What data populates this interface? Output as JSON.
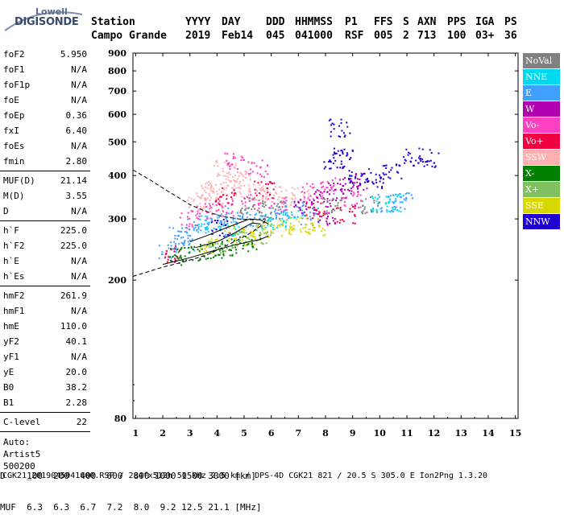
{
  "logo": {
    "line1": "Lowell",
    "line2": "DIGISONDE"
  },
  "header": {
    "labels": [
      "Station",
      "YYYY",
      "DAY",
      "DDD",
      "HHMMSS",
      "P1",
      "FFS",
      "S",
      "AXN",
      "PPS",
      "IGA",
      "PS"
    ],
    "station": "Campo Grande",
    "year": "2019",
    "day": "Feb14",
    "ddd": "045",
    "hhmmss": "041000",
    "p1": "RSF",
    "ffs": "005",
    "s": "2",
    "axn": "713",
    "pps": "100",
    "iga": "03+",
    "ps": "36"
  },
  "params": {
    "group1": [
      {
        "label": "foF2",
        "value": "5.950"
      },
      {
        "label": "foF1",
        "value": "N/A"
      },
      {
        "label": "foF1p",
        "value": "N/A"
      },
      {
        "label": "foE",
        "value": "N/A"
      },
      {
        "label": "foEp",
        "value": "0.36"
      },
      {
        "label": "fxI",
        "value": "6.40"
      },
      {
        "label": "foEs",
        "value": "N/A"
      },
      {
        "label": "fmin",
        "value": "2.80"
      }
    ],
    "group2": [
      {
        "label": "MUF(D)",
        "value": "21.14"
      },
      {
        "label": "M(D)",
        "value": "3.55"
      },
      {
        "label": "D",
        "value": "N/A"
      }
    ],
    "group3": [
      {
        "label": "h`F",
        "value": "225.0"
      },
      {
        "label": "h`F2",
        "value": "225.0"
      },
      {
        "label": "h`E",
        "value": "N/A"
      },
      {
        "label": "h`Es",
        "value": "N/A"
      }
    ],
    "group4": [
      {
        "label": "hmF2",
        "value": "261.9"
      },
      {
        "label": "hmF1",
        "value": "N/A"
      },
      {
        "label": "hmE",
        "value": "110.0"
      },
      {
        "label": "yF2",
        "value": "40.1"
      },
      {
        "label": "yF1",
        "value": "N/A"
      },
      {
        "label": "yE",
        "value": "20.0"
      },
      {
        "label": "B0",
        "value": "38.2"
      },
      {
        "label": "B1",
        "value": "2.28"
      }
    ],
    "group5": [
      {
        "label": "C-level",
        "value": "22"
      }
    ],
    "auto": [
      "Auto:",
      "Artist5",
      "500200"
    ]
  },
  "legend": [
    {
      "label": "NoVal",
      "color": "#808080"
    },
    {
      "label": "NNE",
      "color": "#00d8f0"
    },
    {
      "label": "E",
      "color": "#40a0ff"
    },
    {
      "label": "W",
      "color": "#b000b0"
    },
    {
      "label": "Vo-",
      "color": "#ff40c0"
    },
    {
      "label": "Vo+",
      "color": "#f00040"
    },
    {
      "label": "SSW",
      "color": "#ffb0b0"
    },
    {
      "label": "X-",
      "color": "#008000"
    },
    {
      "label": "X+",
      "color": "#80c060"
    },
    {
      "label": "SSE",
      "color": "#d8d800"
    },
    {
      "label": "NNW",
      "color": "#2000d0"
    }
  ],
  "bottom": {
    "d_row": "D    100  200  400  600  800 1000 1500 3000 [km]",
    "muf_row": "MUF  6.3  6.3  6.7  7.2  8.0  9.2 12.5 21.1 [MHz]",
    "footer": "CGK21_2019045041000.RSF / 284fx512h 50 kHz 2.5 km / DPS-4D CGK21 821 / 20.5 S 305.0 E Ion2Png 1.3.20"
  },
  "chart_data": {
    "type": "scatter",
    "xlabel": "",
    "ylabel": "",
    "xlim": [
      0.9,
      15.1
    ],
    "ylim": [
      80,
      900
    ],
    "x_ticks": [
      1,
      2,
      3,
      4,
      5,
      6,
      7,
      8,
      9,
      10,
      11,
      12,
      13,
      14,
      15
    ],
    "y_ticks": [
      80,
      200,
      300,
      400,
      500,
      600,
      700,
      800,
      900
    ],
    "y_scale": "log",
    "clusters": [
      {
        "name": "SSW",
        "color": "#ffb0b0",
        "points": [
          [
            3.2,
            340
          ],
          [
            3.6,
            360
          ],
          [
            4.0,
            375
          ],
          [
            4.5,
            385
          ],
          [
            5.0,
            370
          ],
          [
            5.5,
            360
          ],
          [
            4.2,
            420
          ],
          [
            4.8,
            410
          ],
          [
            3.8,
            330
          ],
          [
            6.0,
            355
          ],
          [
            6.5,
            345
          ],
          [
            7.0,
            350
          ]
        ]
      },
      {
        "name": "Vo-",
        "color": "#ff40c0",
        "points": [
          [
            3.0,
            300
          ],
          [
            3.5,
            315
          ],
          [
            4.2,
            325
          ],
          [
            5.2,
            340
          ],
          [
            6.2,
            330
          ],
          [
            7.5,
            360
          ],
          [
            8.2,
            375
          ],
          [
            9.0,
            340
          ],
          [
            4.6,
            440
          ],
          [
            5.5,
            420
          ]
        ]
      },
      {
        "name": "E",
        "color": "#40a0ff",
        "points": [
          [
            2.6,
            270
          ],
          [
            3.2,
            285
          ],
          [
            4.0,
            295
          ],
          [
            4.6,
            305
          ],
          [
            5.4,
            300
          ],
          [
            6.2,
            310
          ],
          [
            6.8,
            320
          ],
          [
            7.4,
            305
          ],
          [
            2.2,
            240
          ],
          [
            2.8,
            255
          ],
          [
            10.2,
            335
          ],
          [
            10.8,
            340
          ]
        ]
      },
      {
        "name": "NNE",
        "color": "#00d8f0",
        "points": [
          [
            3.4,
            290
          ],
          [
            4.4,
            280
          ],
          [
            5.8,
            295
          ],
          [
            6.6,
            300
          ],
          [
            10.0,
            330
          ],
          [
            10.5,
            335
          ]
        ]
      },
      {
        "name": "W",
        "color": "#b000b0",
        "points": [
          [
            7.8,
            345
          ],
          [
            8.4,
            360
          ],
          [
            8.8,
            375
          ],
          [
            9.2,
            385
          ],
          [
            7.2,
            330
          ],
          [
            8.0,
            305
          ]
        ]
      },
      {
        "name": "NNW",
        "color": "#2000d0",
        "points": [
          [
            8.3,
            440
          ],
          [
            8.6,
            460
          ],
          [
            9.2,
            400
          ],
          [
            9.8,
            390
          ],
          [
            10.4,
            410
          ],
          [
            11.2,
            455
          ],
          [
            11.8,
            450
          ],
          [
            8.5,
            550
          ],
          [
            4.1,
            285
          ]
        ]
      },
      {
        "name": "Vo+",
        "color": "#f00040",
        "points": [
          [
            4.3,
            350
          ],
          [
            5.7,
            365
          ],
          [
            7.6,
            320
          ],
          [
            8.7,
            310
          ],
          [
            2.4,
            240
          ]
        ]
      },
      {
        "name": "SSE",
        "color": "#d8d800",
        "points": [
          [
            4.6,
            275
          ],
          [
            5.0,
            265
          ],
          [
            5.6,
            280
          ],
          [
            6.4,
            285
          ],
          [
            7.0,
            290
          ],
          [
            7.6,
            285
          ],
          [
            3.6,
            250
          ]
        ]
      },
      {
        "name": "X-",
        "color": "#008000",
        "points": [
          [
            3.0,
            240
          ],
          [
            3.8,
            245
          ],
          [
            4.4,
            250
          ],
          [
            5.2,
            255
          ],
          [
            2.6,
            235
          ]
        ]
      },
      {
        "name": "X+",
        "color": "#80c060",
        "points": [
          [
            4.0,
            255
          ],
          [
            4.8,
            262
          ],
          [
            5.6,
            270
          ]
        ]
      },
      {
        "name": "NoVal",
        "color": "#808080",
        "points": [
          [
            5.2,
            330
          ],
          [
            6.0,
            320
          ],
          [
            8.2,
            330
          ],
          [
            9.6,
            330
          ]
        ]
      }
    ],
    "curves": [
      {
        "name": "ordinary-trace-upper",
        "style": "dashed",
        "points": [
          [
            0.9,
            415
          ],
          [
            1.5,
            390
          ],
          [
            2.2,
            360
          ],
          [
            3.0,
            330
          ],
          [
            3.6,
            315
          ],
          [
            4.2,
            305
          ],
          [
            4.8,
            300
          ],
          [
            5.4,
            298
          ],
          [
            5.8,
            300
          ]
        ]
      },
      {
        "name": "ordinary-trace-lower",
        "style": "dashed",
        "points": [
          [
            0.9,
            205
          ],
          [
            1.5,
            212
          ],
          [
            2.0,
            218
          ],
          [
            2.8,
            226
          ],
          [
            3.6,
            236
          ],
          [
            4.2,
            248
          ],
          [
            4.8,
            262
          ],
          [
            5.3,
            275
          ],
          [
            5.6,
            286
          ],
          [
            5.8,
            298
          ]
        ]
      },
      {
        "name": "profile-upper",
        "style": "solid",
        "points": [
          [
            3.0,
            258
          ],
          [
            3.6,
            268
          ],
          [
            4.2,
            280
          ],
          [
            4.8,
            292
          ],
          [
            5.2,
            300
          ],
          [
            5.6,
            298
          ],
          [
            5.9,
            290
          ]
        ]
      },
      {
        "name": "profile-lower",
        "style": "solid",
        "points": [
          [
            2.0,
            222
          ],
          [
            3.0,
            232
          ],
          [
            3.8,
            242
          ],
          [
            4.6,
            252
          ],
          [
            5.2,
            258
          ],
          [
            5.6,
            262
          ],
          [
            5.9,
            268
          ]
        ]
      },
      {
        "name": "profile-inner",
        "style": "solid",
        "points": [
          [
            3.2,
            248
          ],
          [
            4.0,
            258
          ],
          [
            4.6,
            272
          ],
          [
            5.0,
            284
          ],
          [
            5.3,
            292
          ],
          [
            5.6,
            290
          ]
        ]
      }
    ]
  }
}
